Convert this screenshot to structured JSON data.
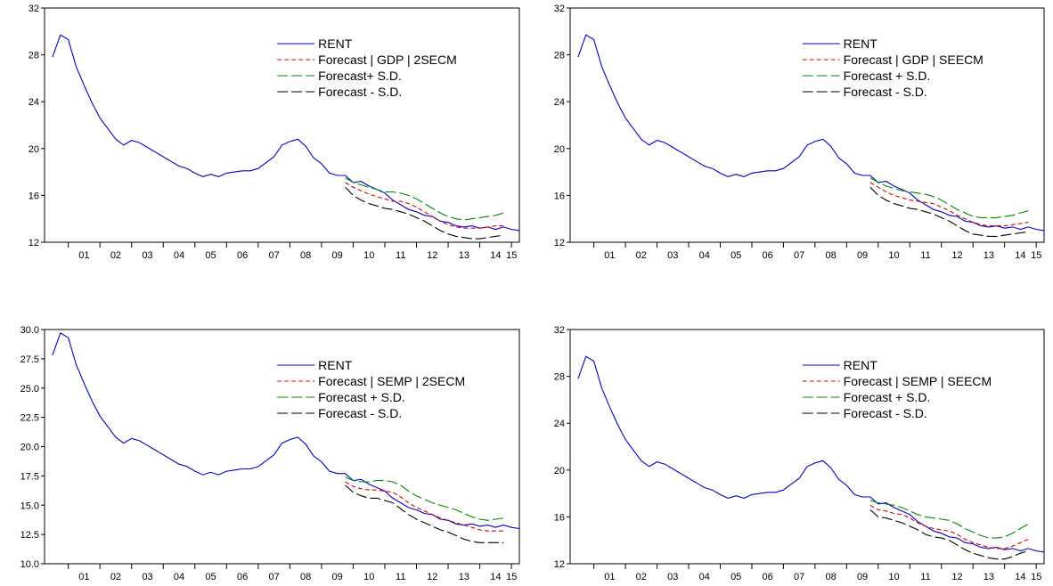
{
  "chart_data": [
    {
      "type": "line",
      "title": "",
      "xlabel": "",
      "ylabel": "",
      "ylim": [
        12,
        32
      ],
      "yticks": [
        "12",
        "16",
        "20",
        "24",
        "28",
        "32"
      ],
      "xticks": [
        "01",
        "02",
        "03",
        "04",
        "05",
        "06",
        "07",
        "08",
        "09",
        "10",
        "11",
        "12",
        "13",
        "14",
        "15"
      ],
      "grid": false,
      "legend_position": "top-right",
      "series": [
        {
          "name": "RENT",
          "color": "#0000cc",
          "dash": "solid",
          "x_start": 2000.5,
          "values": [
            27.8,
            29.7,
            29.3,
            27.0,
            25.4,
            23.9,
            22.6,
            21.7,
            20.8,
            20.3,
            20.7,
            20.5,
            20.1,
            19.7,
            19.3,
            18.9,
            18.5,
            18.3,
            17.9,
            17.6,
            17.8,
            17.6,
            17.9,
            18.0,
            18.1,
            18.1,
            18.3,
            18.8,
            19.3,
            20.3,
            20.6,
            20.8,
            20.2,
            19.2,
            18.7,
            17.9,
            17.7,
            17.7,
            17.1,
            17.2,
            16.8,
            16.5,
            16.2,
            15.6,
            15.2,
            14.8,
            14.6,
            14.3,
            14.2,
            13.8,
            13.7,
            13.4,
            13.3,
            13.4,
            13.2,
            13.3,
            13.1,
            13.3,
            13.1,
            13.0
          ]
        },
        {
          "name": "Forecast | GDP | 2SECM",
          "color": "#dd0000",
          "dash": "short",
          "x_start": 2009.75,
          "values": [
            17.1,
            16.7,
            16.4,
            16.1,
            15.9,
            15.7,
            15.5,
            15.5,
            15.3,
            15.0,
            14.6,
            14.2,
            13.8,
            13.5,
            13.3,
            13.2,
            13.2,
            13.2,
            13.3,
            13.4,
            13.4
          ]
        },
        {
          "name": "Forecast+ S.D.",
          "color": "#008800",
          "dash": "long",
          "x_start": 2009.75,
          "values": [
            17.5,
            17.1,
            16.9,
            16.7,
            16.5,
            16.3,
            16.3,
            16.2,
            16.0,
            15.7,
            15.3,
            14.9,
            14.5,
            14.2,
            14.0,
            13.9,
            14.0,
            14.1,
            14.2,
            14.3,
            14.5
          ]
        },
        {
          "name": "Forecast - S.D.",
          "color": "#000000",
          "dash": "long",
          "x_start": 2009.75,
          "values": [
            16.7,
            16.0,
            15.6,
            15.3,
            15.1,
            14.9,
            14.8,
            14.6,
            14.4,
            14.1,
            13.8,
            13.4,
            13.0,
            12.7,
            12.5,
            12.4,
            12.3,
            12.3,
            12.4,
            12.5,
            12.6
          ]
        }
      ],
      "legend": [
        "RENT",
        "Forecast | GDP | 2SECM",
        "Forecast+ S.D.",
        "Forecast - S.D."
      ]
    },
    {
      "type": "line",
      "title": "",
      "xlabel": "",
      "ylabel": "",
      "ylim": [
        12,
        32
      ],
      "yticks": [
        "12",
        "16",
        "20",
        "24",
        "28",
        "32"
      ],
      "xticks": [
        "01",
        "02",
        "03",
        "04",
        "05",
        "06",
        "07",
        "08",
        "09",
        "10",
        "11",
        "12",
        "13",
        "14",
        "15"
      ],
      "grid": false,
      "legend_position": "top-right",
      "series": [
        {
          "name": "RENT",
          "color": "#0000cc",
          "dash": "solid",
          "x_start": 2000.5,
          "values": [
            27.8,
            29.7,
            29.3,
            27.0,
            25.4,
            23.9,
            22.6,
            21.7,
            20.8,
            20.3,
            20.7,
            20.5,
            20.1,
            19.7,
            19.3,
            18.9,
            18.5,
            18.3,
            17.9,
            17.6,
            17.8,
            17.6,
            17.9,
            18.0,
            18.1,
            18.1,
            18.3,
            18.8,
            19.3,
            20.3,
            20.6,
            20.8,
            20.2,
            19.2,
            18.7,
            17.9,
            17.7,
            17.7,
            17.1,
            17.2,
            16.8,
            16.5,
            16.2,
            15.6,
            15.2,
            14.8,
            14.6,
            14.3,
            14.2,
            13.8,
            13.7,
            13.4,
            13.3,
            13.4,
            13.2,
            13.3,
            13.1,
            13.3,
            13.1,
            13.0
          ]
        },
        {
          "name": "Forecast | GDP | SEECM",
          "color": "#dd0000",
          "dash": "short",
          "x_start": 2009.75,
          "values": [
            17.1,
            16.7,
            16.3,
            16.0,
            15.8,
            15.6,
            15.5,
            15.4,
            15.3,
            15.0,
            14.7,
            14.3,
            14.0,
            13.7,
            13.5,
            13.4,
            13.4,
            13.4,
            13.5,
            13.6,
            13.7
          ]
        },
        {
          "name": "Forecast + S.D.",
          "color": "#008800",
          "dash": "long",
          "x_start": 2009.75,
          "values": [
            17.5,
            17.1,
            16.8,
            16.6,
            16.4,
            16.3,
            16.2,
            16.1,
            15.9,
            15.6,
            15.2,
            14.8,
            14.5,
            14.2,
            14.1,
            14.1,
            14.1,
            14.2,
            14.3,
            14.5,
            14.7
          ]
        },
        {
          "name": "Forecast - S.D.",
          "color": "#000000",
          "dash": "long",
          "x_start": 2009.75,
          "values": [
            16.7,
            16.0,
            15.6,
            15.3,
            15.1,
            14.9,
            14.8,
            14.6,
            14.4,
            14.1,
            13.8,
            13.4,
            13.0,
            12.7,
            12.6,
            12.5,
            12.5,
            12.6,
            12.7,
            12.8,
            12.9
          ]
        }
      ],
      "legend": [
        "RENT",
        "Forecast | GDP | SEECM",
        "Forecast + S.D.",
        "Forecast - S.D."
      ]
    },
    {
      "type": "line",
      "title": "",
      "xlabel": "",
      "ylabel": "",
      "ylim": [
        10,
        30
      ],
      "yticks": [
        "10.0",
        "12.5",
        "15.0",
        "17.5",
        "20.0",
        "22.5",
        "25.0",
        "27.5",
        "30.0"
      ],
      "xticks": [
        "01",
        "02",
        "03",
        "04",
        "05",
        "06",
        "07",
        "08",
        "09",
        "10",
        "11",
        "12",
        "13",
        "14",
        "15"
      ],
      "grid": false,
      "legend_position": "top-right",
      "series": [
        {
          "name": "RENT",
          "color": "#0000cc",
          "dash": "solid",
          "x_start": 2000.5,
          "values": [
            27.8,
            29.7,
            29.3,
            27.0,
            25.4,
            23.9,
            22.6,
            21.7,
            20.8,
            20.3,
            20.7,
            20.5,
            20.1,
            19.7,
            19.3,
            18.9,
            18.5,
            18.3,
            17.9,
            17.6,
            17.8,
            17.6,
            17.9,
            18.0,
            18.1,
            18.1,
            18.3,
            18.8,
            19.3,
            20.3,
            20.6,
            20.8,
            20.2,
            19.2,
            18.7,
            17.9,
            17.7,
            17.7,
            17.1,
            17.2,
            16.8,
            16.5,
            16.2,
            15.6,
            15.2,
            14.8,
            14.6,
            14.3,
            14.2,
            13.8,
            13.7,
            13.4,
            13.3,
            13.4,
            13.2,
            13.3,
            13.1,
            13.3,
            13.1,
            13.0
          ]
        },
        {
          "name": "Forecast | SEMP | 2SECM",
          "color": "#dd0000",
          "dash": "short",
          "x_start": 2009.75,
          "values": [
            17.0,
            16.6,
            16.4,
            16.3,
            16.3,
            16.2,
            16.1,
            15.7,
            15.2,
            14.8,
            14.5,
            14.2,
            13.9,
            13.7,
            13.5,
            13.3,
            13.1,
            12.9,
            12.8,
            12.8,
            12.8
          ]
        },
        {
          "name": "Forecast + S.D.",
          "color": "#008800",
          "dash": "long",
          "x_start": 2009.75,
          "values": [
            17.4,
            17.1,
            17.0,
            17.0,
            17.1,
            17.1,
            17.0,
            16.7,
            16.2,
            15.8,
            15.5,
            15.2,
            15.0,
            14.8,
            14.6,
            14.3,
            14.0,
            13.8,
            13.7,
            13.8,
            13.9
          ]
        },
        {
          "name": "Forecast - S.D.",
          "color": "#000000",
          "dash": "long",
          "x_start": 2009.75,
          "values": [
            16.7,
            16.1,
            15.8,
            15.6,
            15.6,
            15.4,
            15.2,
            14.7,
            14.2,
            13.8,
            13.5,
            13.2,
            12.9,
            12.7,
            12.4,
            12.1,
            11.9,
            11.8,
            11.8,
            11.8,
            11.8
          ]
        }
      ],
      "legend": [
        "RENT",
        "Forecast | SEMP | 2SECM",
        "Forecast + S.D.",
        "Forecast - S.D."
      ]
    },
    {
      "type": "line",
      "title": "",
      "xlabel": "",
      "ylabel": "",
      "ylim": [
        12,
        32
      ],
      "yticks": [
        "12",
        "16",
        "20",
        "24",
        "28",
        "32"
      ],
      "xticks": [
        "01",
        "02",
        "03",
        "04",
        "05",
        "06",
        "07",
        "08",
        "09",
        "10",
        "11",
        "12",
        "13",
        "14",
        "15"
      ],
      "grid": false,
      "legend_position": "top-right",
      "series": [
        {
          "name": "RENT",
          "color": "#0000cc",
          "dash": "solid",
          "x_start": 2000.5,
          "values": [
            27.8,
            29.7,
            29.3,
            27.0,
            25.4,
            23.9,
            22.6,
            21.7,
            20.8,
            20.3,
            20.7,
            20.5,
            20.1,
            19.7,
            19.3,
            18.9,
            18.5,
            18.3,
            17.9,
            17.6,
            17.8,
            17.6,
            17.9,
            18.0,
            18.1,
            18.1,
            18.3,
            18.8,
            19.3,
            20.3,
            20.6,
            20.8,
            20.2,
            19.2,
            18.7,
            17.9,
            17.7,
            17.7,
            17.1,
            17.2,
            16.8,
            16.5,
            16.2,
            15.6,
            15.2,
            14.8,
            14.6,
            14.3,
            14.2,
            13.8,
            13.7,
            13.4,
            13.3,
            13.4,
            13.2,
            13.3,
            13.1,
            13.3,
            13.1,
            13.0
          ]
        },
        {
          "name": "Forecast | SEMP | SEECM",
          "color": "#dd0000",
          "dash": "short",
          "x_start": 2009.75,
          "values": [
            17.0,
            16.6,
            16.5,
            16.3,
            16.2,
            15.9,
            15.5,
            15.2,
            15.0,
            14.9,
            14.8,
            14.5,
            14.1,
            13.8,
            13.6,
            13.4,
            13.3,
            13.3,
            13.5,
            13.8,
            14.1
          ]
        },
        {
          "name": "Forecast + S.D.",
          "color": "#008800",
          "dash": "long",
          "x_start": 2009.75,
          "values": [
            17.4,
            17.2,
            17.1,
            17.0,
            16.8,
            16.5,
            16.2,
            16.0,
            15.9,
            15.8,
            15.7,
            15.4,
            15.0,
            14.7,
            14.4,
            14.2,
            14.2,
            14.3,
            14.6,
            15.0,
            15.4
          ]
        },
        {
          "name": "Forecast - S.D.",
          "color": "#000000",
          "dash": "long",
          "x_start": 2009.75,
          "values": [
            16.6,
            16.0,
            15.9,
            15.7,
            15.5,
            15.2,
            14.9,
            14.5,
            14.3,
            14.2,
            14.0,
            13.6,
            13.2,
            12.9,
            12.7,
            12.5,
            12.4,
            12.4,
            12.6,
            12.9,
            13.1
          ]
        }
      ],
      "legend": [
        "RENT",
        "Forecast | SEMP | SEECM",
        "Forecast + S.D.",
        "Forecast - S.D."
      ]
    }
  ]
}
